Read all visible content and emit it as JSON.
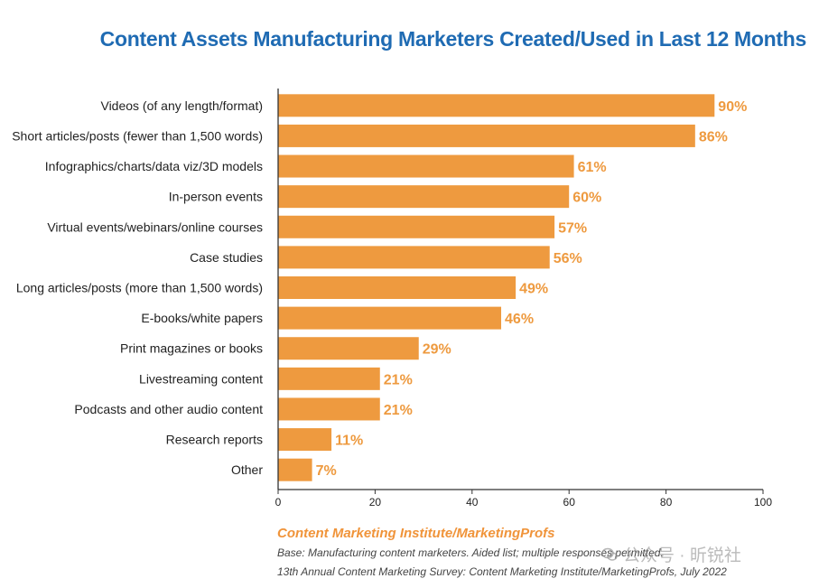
{
  "title": "Content Assets Manufacturing Marketers Created/Used in Last 12 Months",
  "footer": {
    "source": "Content Marketing Institute/MarketingProfs",
    "base": "Base: Manufacturing content marketers. Aided list; multiple responses permitted.",
    "survey": "13th Annual Content Marketing Survey: Content Marketing Institute/MarketingProfs, July 2022"
  },
  "watermark": {
    "text": "公众号 · 昕锐社",
    "icon": "wechat-icon"
  },
  "colors": {
    "bar": "#ee9a3f",
    "label": "#ee9a3f",
    "title": "#1f6bb3"
  },
  "chart_data": {
    "type": "bar",
    "orientation": "horizontal",
    "categories": [
      "Videos (of any length/format)",
      "Short articles/posts (fewer than 1,500 words)",
      "Infographics/charts/data viz/3D models",
      "In-person events",
      "Virtual events/webinars/online courses",
      "Case studies",
      "Long articles/posts (more than 1,500 words)",
      "E-books/white papers",
      "Print magazines or books",
      "Livestreaming content",
      "Podcasts and other audio content",
      "Research reports",
      "Other"
    ],
    "values": [
      90,
      86,
      61,
      60,
      57,
      56,
      49,
      46,
      29,
      21,
      21,
      11,
      7
    ],
    "value_labels": [
      "90%",
      "86%",
      "61%",
      "60%",
      "57%",
      "56%",
      "49%",
      "46%",
      "29%",
      "21%",
      "21%",
      "11%",
      "7%"
    ],
    "xlim": [
      0,
      100
    ],
    "xticks": [
      0,
      20,
      40,
      60,
      80,
      100
    ],
    "grid": false,
    "legend": "none"
  }
}
